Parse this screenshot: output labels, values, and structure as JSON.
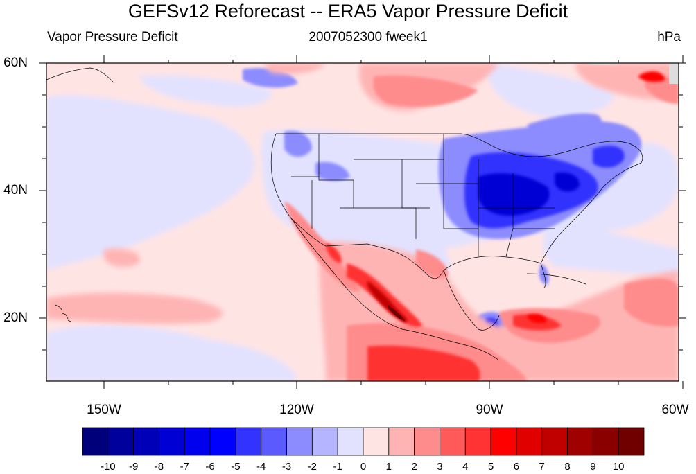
{
  "title": "GEFSv12 Reforecast -- ERA5 Vapor Pressure Deficit",
  "subtitle": {
    "left": "Vapor Pressure Deficit",
    "center": "2007052300 fweek1",
    "right": "hPa"
  },
  "map": {
    "lat_labels": [
      "60N",
      "40N",
      "20N"
    ],
    "lon_labels": [
      "150W",
      "120W",
      "90W",
      "60W"
    ],
    "lat_range": [
      10,
      60
    ],
    "lon_range": [
      -159,
      -61
    ]
  },
  "colorbar": {
    "labels": [
      "-10",
      "-9",
      "-8",
      "-7",
      "-6",
      "-5",
      "-4",
      "-3",
      "-2",
      "-1",
      "0",
      "1",
      "2",
      "3",
      "4",
      "5",
      "6",
      "7",
      "8",
      "9",
      "10"
    ],
    "colors": [
      "#00007a",
      "#00009c",
      "#0000b8",
      "#0000d4",
      "#0000ee",
      "#0000ff",
      "#3333ff",
      "#5a5aff",
      "#8c8cff",
      "#b4b4ff",
      "#e2e2ff",
      "#ffe4e4",
      "#ffb4b4",
      "#ff8c8c",
      "#ff5a5a",
      "#ff3333",
      "#ff0000",
      "#e00000",
      "#c00000",
      "#a00000",
      "#8a0000",
      "#700000"
    ]
  },
  "colors": {
    "background": "#ffffff",
    "ocean_light_red": "#ffe4e4",
    "light_blue": "#e2e2ff",
    "border_line": "#000000"
  }
}
